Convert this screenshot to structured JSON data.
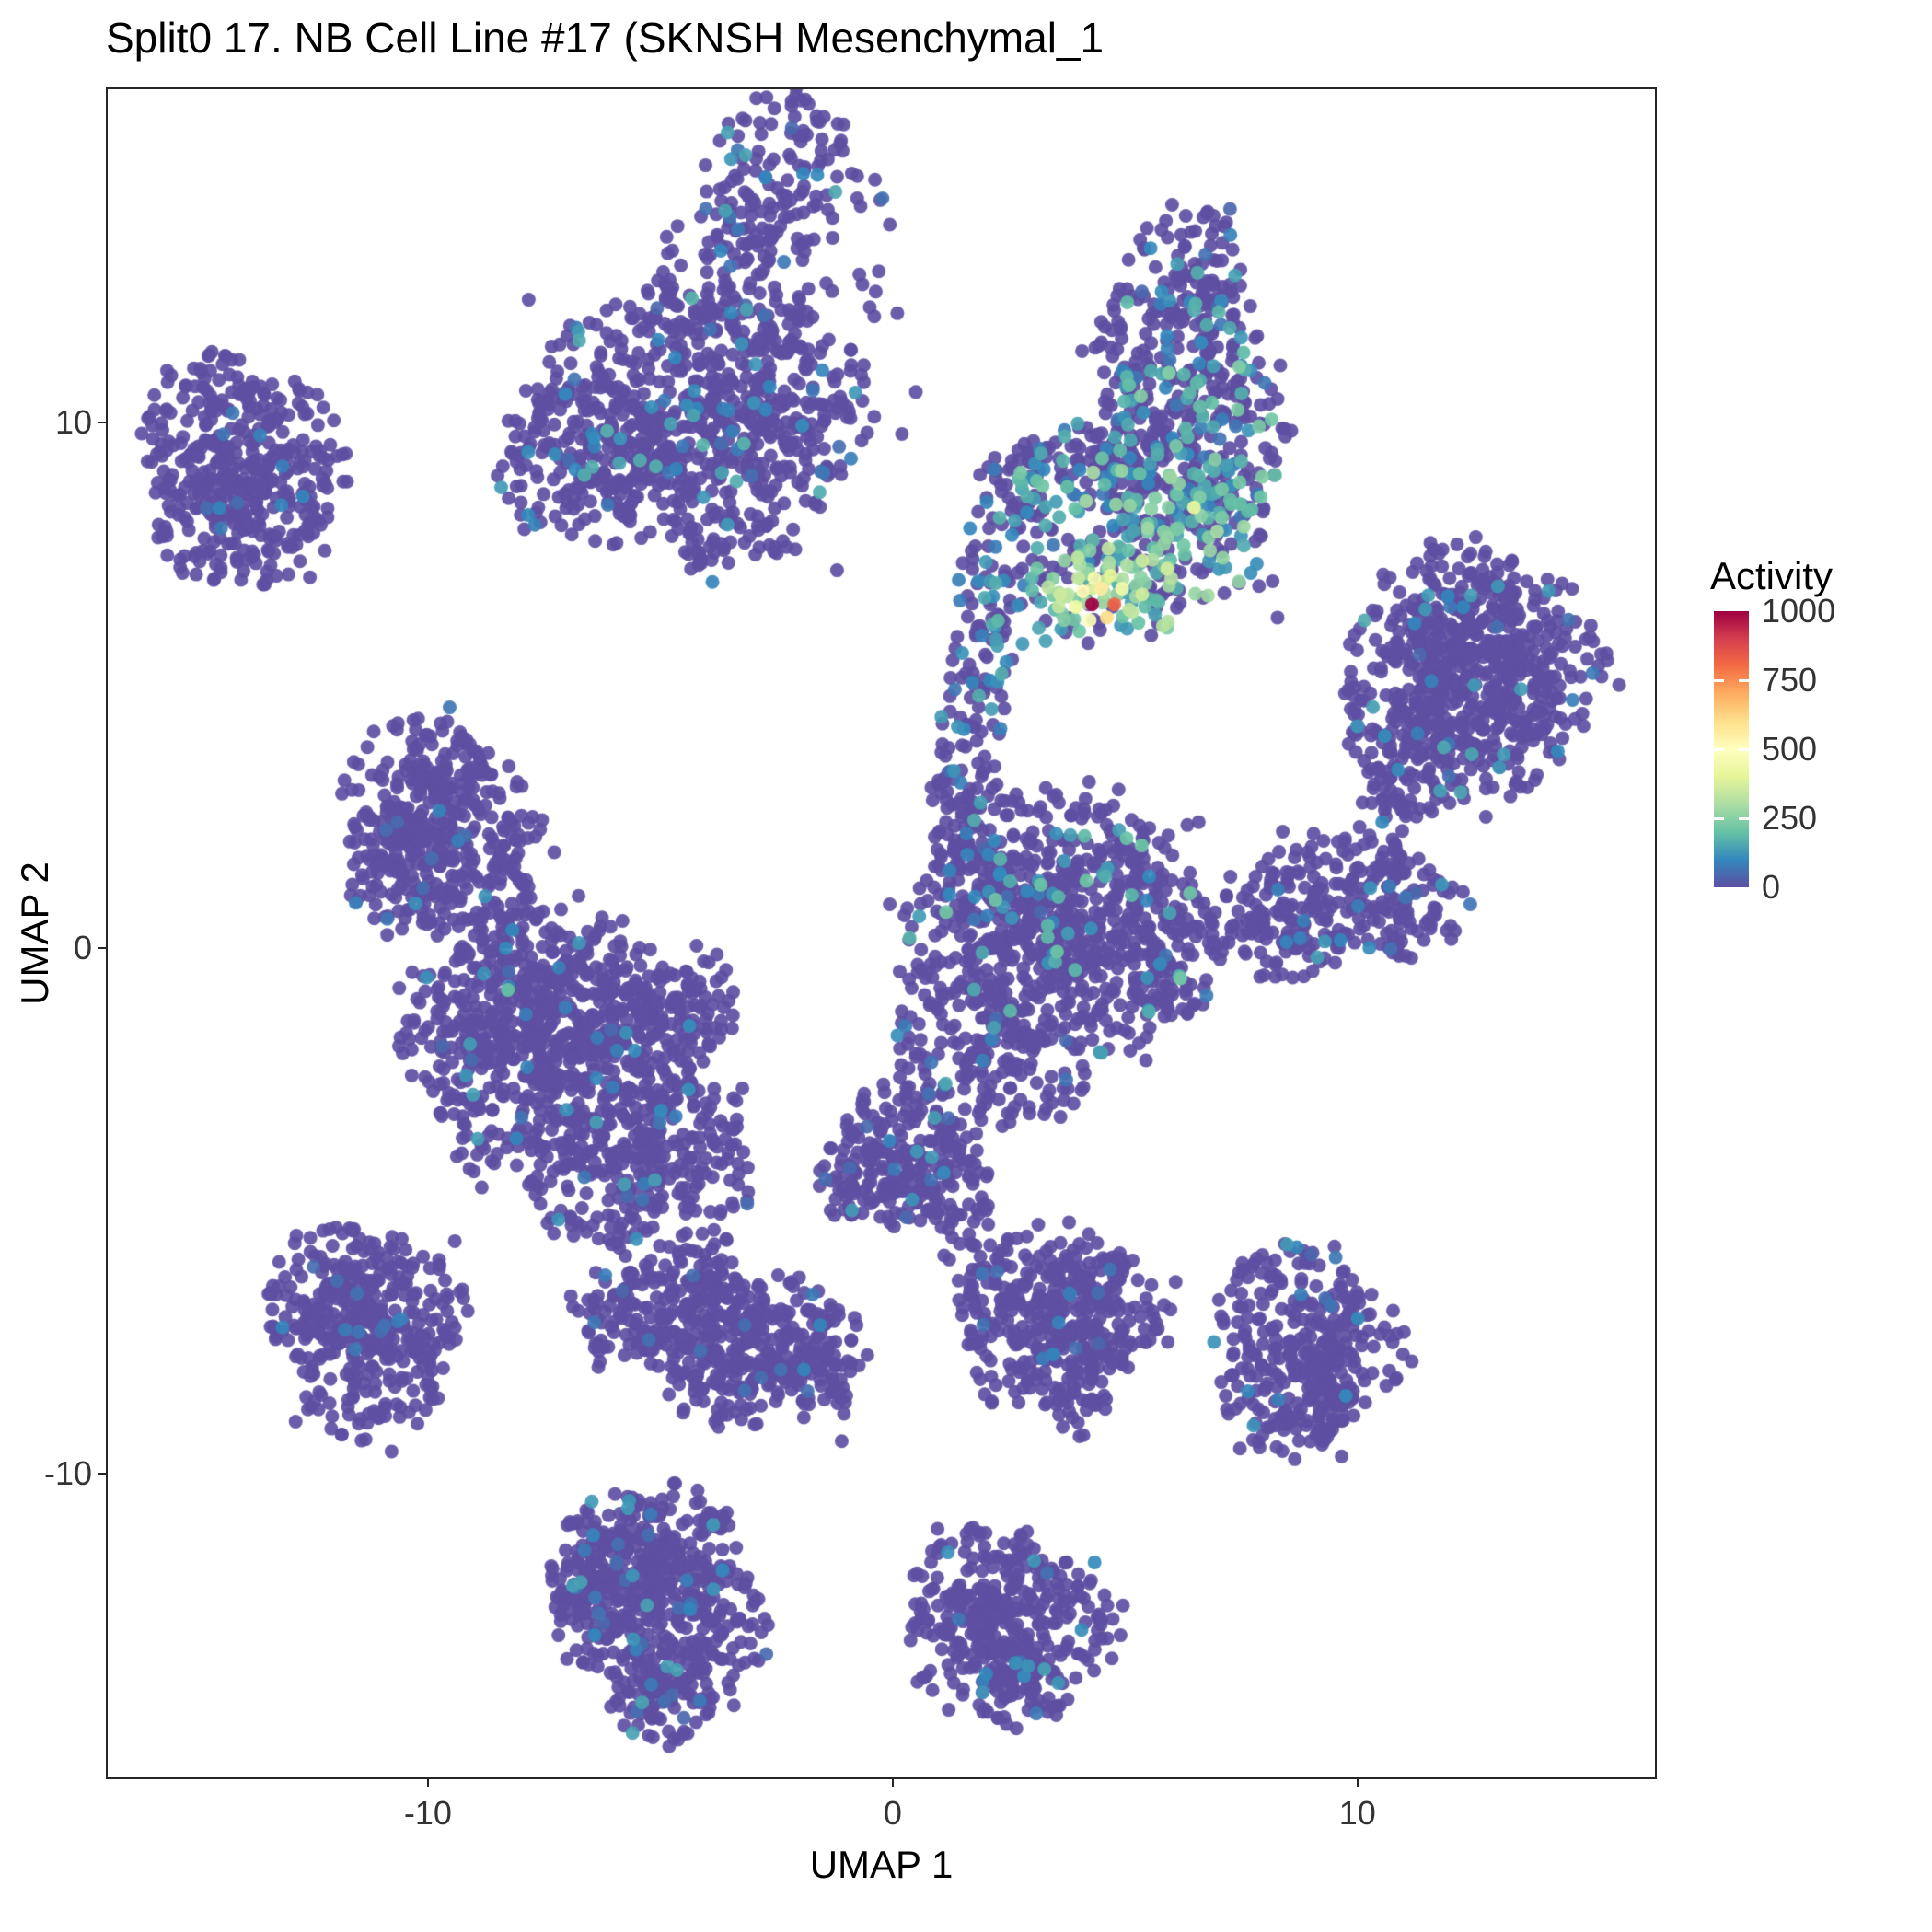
{
  "chart_data": {
    "type": "scatter",
    "title": "Split0 17. NB Cell Line #17 (SKNSH Mesenchymal_1",
    "xlabel": "UMAP 1",
    "ylabel": "UMAP 2",
    "xlim": [
      -16.93,
      16.44
    ],
    "ylim": [
      -15.81,
      16.37
    ],
    "x_ticks": [
      -10,
      0,
      10
    ],
    "y_ticks": [
      -10,
      0,
      10
    ],
    "grid": "off",
    "legend": {
      "title": "Activity",
      "position": "right",
      "range": [
        0,
        1000
      ],
      "ticks": [
        0,
        250,
        500,
        750,
        1000
      ]
    },
    "color_scale": {
      "name": "Spectral (reversed)",
      "domain": [
        0,
        1000
      ],
      "palette": [
        "#5E4FA2",
        "#3288BD",
        "#66C2A5",
        "#ABDDA4",
        "#E6F598",
        "#FFFFBF",
        "#FEE08B",
        "#FDAE61",
        "#F46D43",
        "#D53E4F",
        "#9E0142"
      ]
    },
    "point_color_default": "#5E4FA2",
    "lobe_format": [
      "x",
      "y",
      "sx",
      "sy",
      "n",
      "p_active",
      "v_min",
      "v_max"
    ],
    "point_format": [
      "x",
      "y",
      "value"
    ],
    "clusters": [
      {
        "name": "top-center",
        "lobes": [
          [
            -2.4,
            14.8,
            0.85,
            0.75,
            120,
            0.08,
            40,
            160
          ],
          [
            -3.5,
            12.4,
            0.95,
            0.9,
            170,
            0.08,
            40,
            160
          ],
          [
            -5.1,
            10.5,
            1.3,
            1.0,
            280,
            0.1,
            40,
            180
          ],
          [
            -6.6,
            9.2,
            1.0,
            0.8,
            180,
            0.1,
            40,
            180
          ],
          [
            -3.7,
            8.9,
            1.2,
            0.8,
            190,
            0.1,
            40,
            180
          ],
          [
            -2.0,
            10.3,
            0.8,
            0.8,
            130,
            0.08,
            40,
            160
          ],
          [
            -0.6,
            13.4,
            0.55,
            0.8,
            14,
            0.1,
            40,
            120
          ],
          [
            -3.9,
            7.4,
            0.3,
            0.3,
            12,
            0.05,
            40,
            100
          ]
        ]
      },
      {
        "name": "upper-right-hotspot",
        "lobes": [
          [
            6.4,
            12.7,
            0.7,
            0.7,
            90,
            0.15,
            40,
            180
          ],
          [
            6.1,
            11.2,
            0.9,
            0.9,
            170,
            0.2,
            50,
            200
          ],
          [
            6.5,
            9.6,
            1.05,
            0.9,
            200,
            0.3,
            60,
            250
          ],
          [
            5.9,
            8.0,
            1.1,
            0.8,
            210,
            0.45,
            80,
            300
          ],
          [
            4.6,
            6.7,
            0.8,
            0.5,
            90,
            0.55,
            100,
            380
          ],
          [
            2.6,
            8.2,
            0.5,
            0.7,
            55,
            0.3,
            60,
            200
          ],
          [
            2.1,
            6.7,
            0.4,
            0.6,
            45,
            0.3,
            60,
            200
          ],
          [
            1.9,
            5.3,
            0.35,
            0.6,
            40,
            0.25,
            60,
            180
          ],
          [
            1.6,
            3.9,
            0.4,
            0.7,
            40,
            0.2,
            50,
            160
          ],
          [
            1.4,
            2.8,
            0.3,
            0.4,
            15,
            0.15,
            50,
            140
          ],
          [
            3.3,
            9.0,
            0.5,
            0.4,
            40,
            0.3,
            60,
            220
          ],
          [
            4.3,
            9.3,
            0.5,
            0.4,
            40,
            0.3,
            60,
            220
          ]
        ]
      },
      {
        "name": "upper-left",
        "lobes": [
          [
            -14.6,
            9.8,
            0.8,
            0.8,
            150,
            0.02,
            40,
            100
          ],
          [
            -13.4,
            9.2,
            0.8,
            0.9,
            150,
            0.02,
            40,
            100
          ],
          [
            -14.8,
            8.2,
            0.6,
            0.6,
            80,
            0.02,
            40,
            100
          ],
          [
            -13.6,
            7.9,
            0.55,
            0.5,
            60,
            0.02,
            40,
            100
          ]
        ]
      },
      {
        "name": "right",
        "lobes": [
          [
            12.2,
            6.3,
            0.9,
            0.7,
            150,
            0.05,
            40,
            160
          ],
          [
            13.5,
            5.6,
            1.0,
            0.8,
            170,
            0.05,
            40,
            160
          ],
          [
            11.5,
            5.2,
            0.9,
            0.8,
            150,
            0.05,
            40,
            160
          ],
          [
            12.8,
            4.3,
            1.0,
            0.8,
            160,
            0.05,
            40,
            160
          ],
          [
            11.2,
            3.7,
            0.7,
            0.6,
            90,
            0.05,
            40,
            160
          ],
          [
            10.8,
            2.6,
            0.4,
            0.5,
            30,
            0.05,
            40,
            140
          ],
          [
            9.7,
            0.9,
            1.1,
            0.6,
            150,
            0.05,
            40,
            140
          ],
          [
            8.3,
            0.3,
            0.8,
            0.5,
            90,
            0.05,
            40,
            140
          ],
          [
            11.2,
            0.8,
            0.6,
            0.5,
            60,
            0.05,
            40,
            140
          ]
        ]
      },
      {
        "name": "mid-left",
        "lobes": [
          [
            -10.3,
            3.0,
            0.8,
            0.7,
            150,
            0.03,
            40,
            120
          ],
          [
            -9.3,
            2.2,
            0.9,
            0.8,
            160,
            0.03,
            40,
            120
          ],
          [
            -10.6,
            1.5,
            0.6,
            0.6,
            80,
            0.03,
            40,
            120
          ],
          [
            -9.0,
            0.9,
            0.6,
            0.5,
            70,
            0.03,
            40,
            120
          ]
        ]
      },
      {
        "name": "center-left",
        "lobes": [
          [
            -7.6,
            -0.6,
            1.0,
            0.8,
            180,
            0.04,
            40,
            140
          ],
          [
            -9.0,
            -1.4,
            0.9,
            0.8,
            150,
            0.04,
            40,
            140
          ],
          [
            -6.2,
            -1.6,
            1.0,
            0.9,
            180,
            0.04,
            40,
            140
          ],
          [
            -7.8,
            -2.8,
            1.1,
            0.9,
            180,
            0.04,
            40,
            140
          ],
          [
            -5.3,
            -3.0,
            1.0,
            1.0,
            180,
            0.04,
            40,
            140
          ],
          [
            -6.3,
            -4.4,
            0.8,
            0.7,
            110,
            0.04,
            40,
            140
          ],
          [
            -4.4,
            -4.3,
            0.7,
            0.8,
            100,
            0.04,
            40,
            140
          ],
          [
            -4.5,
            -1.0,
            0.6,
            0.6,
            70,
            0.04,
            40,
            140
          ]
        ]
      },
      {
        "name": "center-right",
        "lobes": [
          [
            3.4,
            1.3,
            1.2,
            0.9,
            220,
            0.1,
            40,
            220
          ],
          [
            5.0,
            0.6,
            1.0,
            0.9,
            180,
            0.1,
            40,
            220
          ],
          [
            2.0,
            0.3,
            0.9,
            0.9,
            160,
            0.08,
            40,
            200
          ],
          [
            4.0,
            -0.8,
            1.0,
            0.7,
            140,
            0.08,
            40,
            200
          ],
          [
            5.9,
            -0.2,
            0.6,
            0.6,
            70,
            0.08,
            40,
            180
          ],
          [
            1.2,
            -1.5,
            0.6,
            0.7,
            80,
            0.06,
            40,
            160
          ],
          [
            2.8,
            -2.3,
            0.7,
            0.6,
            90,
            0.06,
            40,
            160
          ],
          [
            1.9,
            2.2,
            0.5,
            0.6,
            50,
            0.1,
            40,
            200
          ]
        ]
      },
      {
        "name": "center-small",
        "lobes": [
          [
            0.4,
            -3.6,
            0.8,
            0.6,
            130,
            0.05,
            40,
            140
          ],
          [
            -0.4,
            -4.4,
            0.6,
            0.5,
            80,
            0.05,
            40,
            140
          ],
          [
            1.1,
            -4.5,
            0.5,
            0.5,
            60,
            0.05,
            40,
            140
          ],
          [
            1.6,
            -5.5,
            0.3,
            0.5,
            20,
            0.05,
            40,
            120
          ],
          [
            1.9,
            -6.6,
            0.25,
            0.4,
            12,
            0.05,
            40,
            120
          ]
        ]
      },
      {
        "name": "lower-left-heart",
        "lobes": [
          [
            -12.0,
            -6.6,
            0.8,
            0.7,
            140,
            0.02,
            40,
            100
          ],
          [
            -10.7,
            -6.9,
            0.8,
            0.7,
            140,
            0.02,
            40,
            100
          ],
          [
            -11.4,
            -8.0,
            0.9,
            0.7,
            130,
            0.02,
            40,
            100
          ]
        ]
      },
      {
        "name": "lower-center-triangle",
        "lobes": [
          [
            -5.6,
            -6.9,
            0.6,
            0.5,
            70,
            0.02,
            40,
            100
          ],
          [
            -4.4,
            -7.0,
            0.9,
            0.6,
            150,
            0.02,
            40,
            100
          ],
          [
            -2.9,
            -7.3,
            0.9,
            0.6,
            150,
            0.02,
            40,
            100
          ],
          [
            -1.6,
            -7.8,
            0.6,
            0.5,
            80,
            0.02,
            40,
            100
          ],
          [
            -3.6,
            -8.3,
            0.7,
            0.45,
            80,
            0.02,
            40,
            100
          ],
          [
            -4.6,
            -5.9,
            0.15,
            0.15,
            6,
            0,
            0,
            0
          ]
        ]
      },
      {
        "name": "lower-mid-right",
        "lobes": [
          [
            3.4,
            -6.5,
            0.9,
            0.6,
            150,
            0.03,
            40,
            120
          ],
          [
            4.6,
            -7.0,
            0.7,
            0.6,
            110,
            0.03,
            40,
            120
          ],
          [
            3.0,
            -7.7,
            0.7,
            0.6,
            100,
            0.03,
            40,
            120
          ],
          [
            4.0,
            -8.5,
            0.4,
            0.45,
            40,
            0.03,
            40,
            120
          ]
        ]
      },
      {
        "name": "lower-right",
        "lobes": [
          [
            8.6,
            -7.0,
            0.8,
            0.7,
            130,
            0.03,
            40,
            140
          ],
          [
            9.7,
            -7.6,
            0.7,
            0.6,
            100,
            0.03,
            40,
            140
          ],
          [
            8.4,
            -8.4,
            0.7,
            0.6,
            90,
            0.03,
            40,
            140
          ],
          [
            9.3,
            -9.0,
            0.4,
            0.4,
            40,
            0.03,
            40,
            140
          ]
        ]
      },
      {
        "name": "bottom-left",
        "lobes": [
          [
            -5.9,
            -11.6,
            0.7,
            0.6,
            110,
            0.07,
            40,
            150
          ],
          [
            -4.7,
            -11.4,
            0.7,
            0.6,
            110,
            0.07,
            40,
            150
          ],
          [
            -5.5,
            -12.7,
            0.9,
            0.8,
            170,
            0.07,
            40,
            150
          ],
          [
            -4.2,
            -13.0,
            0.8,
            0.7,
            130,
            0.07,
            40,
            150
          ],
          [
            -5.0,
            -14.2,
            0.6,
            0.5,
            80,
            0.07,
            40,
            150
          ],
          [
            -6.7,
            -12.2,
            0.4,
            0.5,
            50,
            0.07,
            40,
            150
          ]
        ]
      },
      {
        "name": "bottom-center",
        "lobes": [
          [
            2.2,
            -12.2,
            0.9,
            0.6,
            140,
            0.05,
            40,
            140
          ],
          [
            3.3,
            -13.0,
            0.8,
            0.6,
            120,
            0.05,
            40,
            140
          ],
          [
            1.7,
            -13.4,
            0.7,
            0.6,
            100,
            0.05,
            40,
            140
          ],
          [
            2.8,
            -14.2,
            0.5,
            0.4,
            60,
            0.05,
            40,
            140
          ]
        ]
      }
    ],
    "singles": [
      [
        -0.3,
        12.9,
        0
      ],
      [
        0.1,
        12.1,
        0
      ],
      [
        -0.9,
        11.4,
        0
      ],
      [
        0.5,
        10.6,
        0
      ],
      [
        0.2,
        9.8,
        0
      ],
      [
        -2.1,
        7.6,
        0
      ],
      [
        -1.2,
        7.2,
        0
      ],
      [
        -0.2,
        -2.6,
        0
      ],
      [
        0.7,
        -2.4,
        0
      ],
      [
        7.9,
        6.9,
        0
      ],
      [
        8.3,
        6.3,
        0
      ],
      [
        6.6,
        2.4,
        0
      ],
      [
        -8.3,
        -0.8,
        200
      ],
      [
        -1.1,
        -9.4,
        0
      ]
    ],
    "highlight_points": [
      [
        4.3,
        6.55,
        1000
      ],
      [
        4.78,
        6.55,
        820
      ],
      [
        4.62,
        6.3,
        600
      ],
      [
        4.5,
        6.85,
        560
      ],
      [
        4.1,
        6.8,
        520
      ],
      [
        4.25,
        6.25,
        480
      ],
      [
        4.35,
        7.05,
        460
      ],
      [
        4.95,
        6.85,
        450
      ],
      [
        3.95,
        6.5,
        430
      ],
      [
        6.5,
        8.4,
        420
      ],
      [
        4.7,
        7.1,
        400
      ],
      [
        4.0,
        7.05,
        350
      ],
      [
        5.1,
        6.45,
        330
      ],
      [
        3.75,
        6.7,
        320
      ],
      [
        5.05,
        7.3,
        300
      ],
      [
        5.6,
        7.4,
        300
      ],
      [
        5.25,
        6.7,
        280
      ],
      [
        5.5,
        8.0,
        280
      ],
      [
        5.85,
        7.7,
        260
      ],
      [
        3.7,
        6.25,
        240
      ],
      [
        5.45,
        6.95,
        240
      ],
      [
        5.95,
        8.4,
        240
      ],
      [
        6.15,
        8.0,
        220
      ],
      [
        5.3,
        6.2,
        200
      ],
      [
        6.3,
        7.5,
        200
      ],
      [
        3.5,
        6.45,
        180
      ],
      [
        6.8,
        8.2,
        180
      ],
      [
        6.6,
        9.0,
        180
      ],
      [
        7.0,
        8.7,
        160
      ],
      [
        3.15,
        6.1,
        150
      ],
      [
        3.3,
        5.85,
        140
      ],
      [
        7.2,
        9.2,
        140
      ],
      [
        2.8,
        5.8,
        130
      ],
      [
        2.45,
        5.45,
        110
      ],
      [
        2.1,
        5.1,
        100
      ]
    ]
  }
}
